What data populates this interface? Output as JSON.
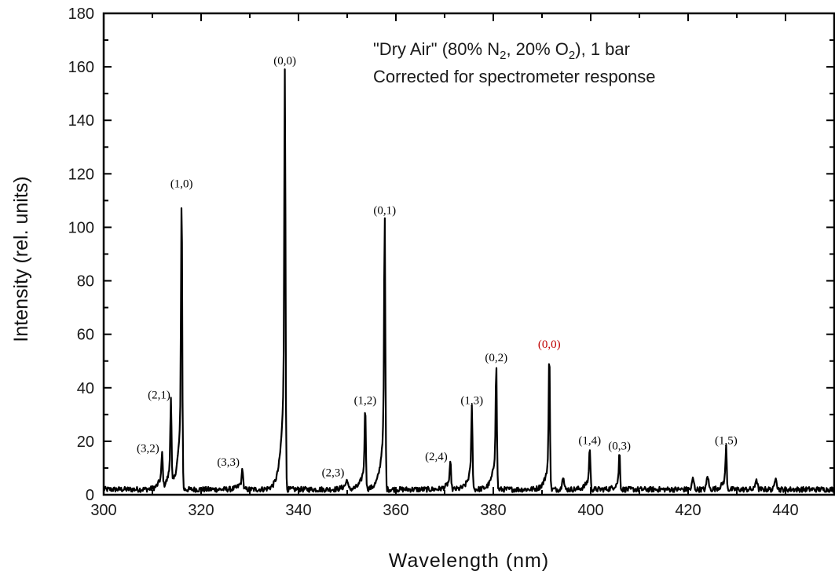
{
  "chart_data": {
    "type": "line",
    "xlabel": "Wavelength (nm)",
    "ylabel": "Intensity (rel. units)",
    "xlim": [
      300,
      450
    ],
    "ylim": [
      0,
      180
    ],
    "x_ticks": [
      "300",
      "320",
      "340",
      "360",
      "380",
      "400",
      "420",
      "440"
    ],
    "y_ticks": [
      "0",
      "20",
      "40",
      "60",
      "80",
      "100",
      "120",
      "140",
      "160",
      "180"
    ],
    "annotation_lines": [
      {
        "segments": [
          {
            "text": "\"Dry Air\" (80% N",
            "sub": false
          },
          {
            "text": "2",
            "sub": true
          },
          {
            "text": ", 20% O",
            "sub": false
          },
          {
            "text": "2",
            "sub": true
          },
          {
            "text": "), 1 bar",
            "sub": false
          }
        ]
      },
      {
        "segments": [
          {
            "text": "Corrected for spectrometer response",
            "sub": false
          }
        ]
      }
    ],
    "line_color": "#000000",
    "noise_level": 2,
    "peaks": [
      {
        "label": "(3,2)",
        "x": 312.0,
        "y": 13,
        "color": "#000000",
        "shoulder": 6
      },
      {
        "label": "(2,1)",
        "x": 313.8,
        "y": 33,
        "color": "#000000",
        "shoulder": 10
      },
      {
        "label": "(1,0)",
        "x": 316.0,
        "y": 112,
        "color": "#000000",
        "shoulder": 38
      },
      {
        "label": "(3,3)",
        "x": 328.5,
        "y": 8,
        "color": "#000000",
        "shoulder": 4
      },
      {
        "label": "(0,0)",
        "x": 337.2,
        "y": 158,
        "color": "#000000",
        "shoulder": 55
      },
      {
        "label": "(2,3)",
        "x": 350.0,
        "y": 4,
        "color": "#000000",
        "shoulder": 3
      },
      {
        "label": "(1,2)",
        "x": 353.7,
        "y": 31,
        "color": "#000000",
        "shoulder": 12
      },
      {
        "label": "(0,1)",
        "x": 357.7,
        "y": 102,
        "color": "#000000",
        "shoulder": 35
      },
      {
        "label": "(2,4)",
        "x": 371.2,
        "y": 10,
        "color": "#000000",
        "shoulder": 5
      },
      {
        "label": "(1,3)",
        "x": 375.6,
        "y": 31,
        "color": "#000000",
        "shoulder": 12
      },
      {
        "label": "(0,2)",
        "x": 380.6,
        "y": 47,
        "color": "#000000",
        "shoulder": 18
      },
      {
        "label": "(0,0)",
        "x": 391.5,
        "y": 52,
        "color": "#c00000",
        "shoulder": 15
      },
      {
        "label": "(1,4)",
        "x": 399.8,
        "y": 16,
        "color": "#000000",
        "shoulder": 6
      },
      {
        "label": "(0,3)",
        "x": 405.9,
        "y": 14,
        "color": "#000000",
        "shoulder": 5
      },
      {
        "label": "(1,5)",
        "x": 427.8,
        "y": 16,
        "color": "#000000",
        "shoulder": 6
      }
    ],
    "minor_peaks": [
      {
        "x": 394.3,
        "y": 5
      },
      {
        "x": 421.0,
        "y": 4
      },
      {
        "x": 424.0,
        "y": 5
      },
      {
        "x": 434.0,
        "y": 4
      },
      {
        "x": 438.0,
        "y": 5
      }
    ]
  }
}
